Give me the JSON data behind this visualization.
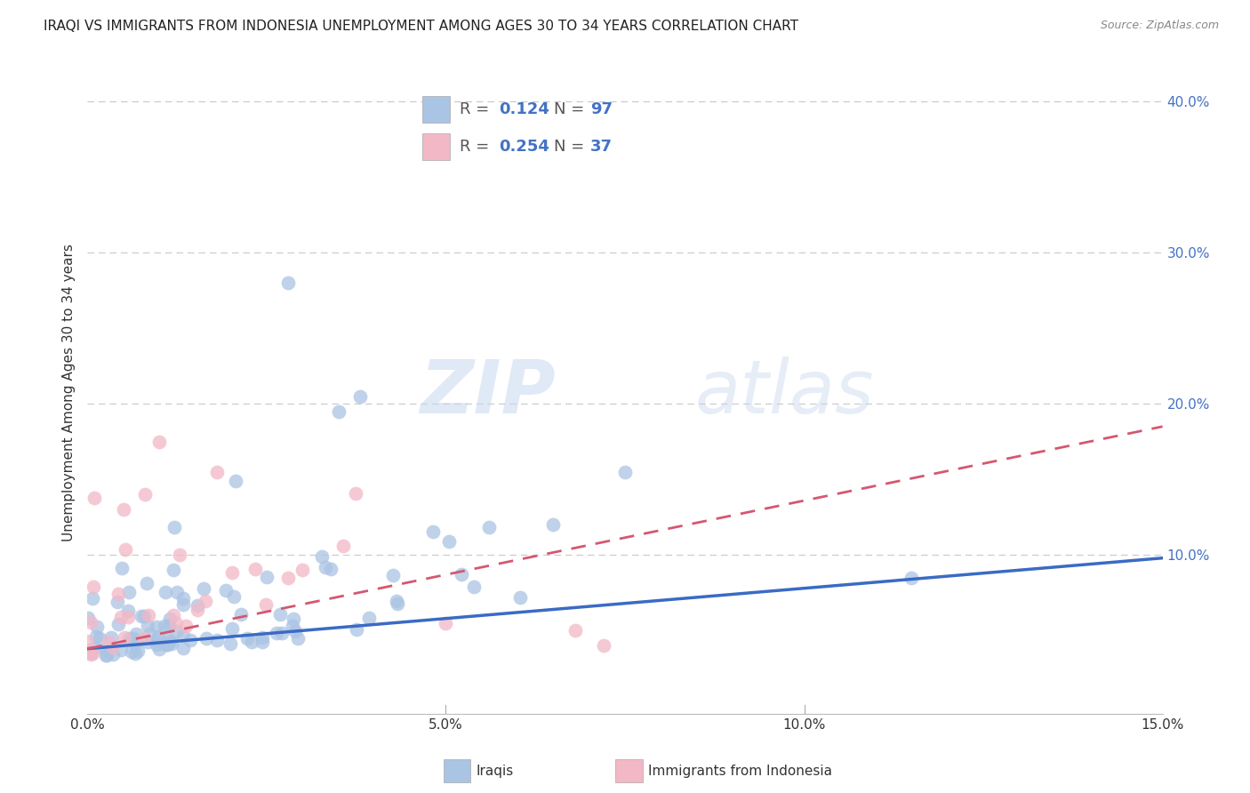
{
  "title": "IRAQI VS IMMIGRANTS FROM INDONESIA UNEMPLOYMENT AMONG AGES 30 TO 34 YEARS CORRELATION CHART",
  "source": "Source: ZipAtlas.com",
  "ylabel": "Unemployment Among Ages 30 to 34 years",
  "xlim": [
    0.0,
    0.15
  ],
  "ylim": [
    -0.005,
    0.42
  ],
  "xtick_vals": [
    0.0,
    0.05,
    0.1,
    0.15
  ],
  "xtick_labels": [
    "0.0%",
    "5.0%",
    "10.0%",
    "15.0%"
  ],
  "ytick_vals": [
    0.0,
    0.1,
    0.2,
    0.3,
    0.4
  ],
  "ytick_labels": [
    "",
    "10.0%",
    "20.0%",
    "30.0%",
    "40.0%"
  ],
  "watermark_zip": "ZIP",
  "watermark_atlas": "atlas",
  "legend_label1": "Iraqis",
  "legend_label2": "Immigrants from Indonesia",
  "R1": 0.124,
  "N1": 97,
  "R2": 0.254,
  "N2": 37,
  "color1": "#aac4e4",
  "color2": "#f2b8c6",
  "line_color1": "#3a6bc4",
  "line_color2": "#d45870",
  "trend1_x": [
    0.0,
    0.15
  ],
  "trend1_y": [
    0.038,
    0.098
  ],
  "trend2_x": [
    0.0,
    0.15
  ],
  "trend2_y": [
    0.038,
    0.185
  ],
  "grid_color": "#cccccc",
  "tick_color": "#4472c4",
  "text_color": "#333333",
  "title_color": "#222222",
  "source_color": "#888888",
  "border_color": "#bbbbbb"
}
